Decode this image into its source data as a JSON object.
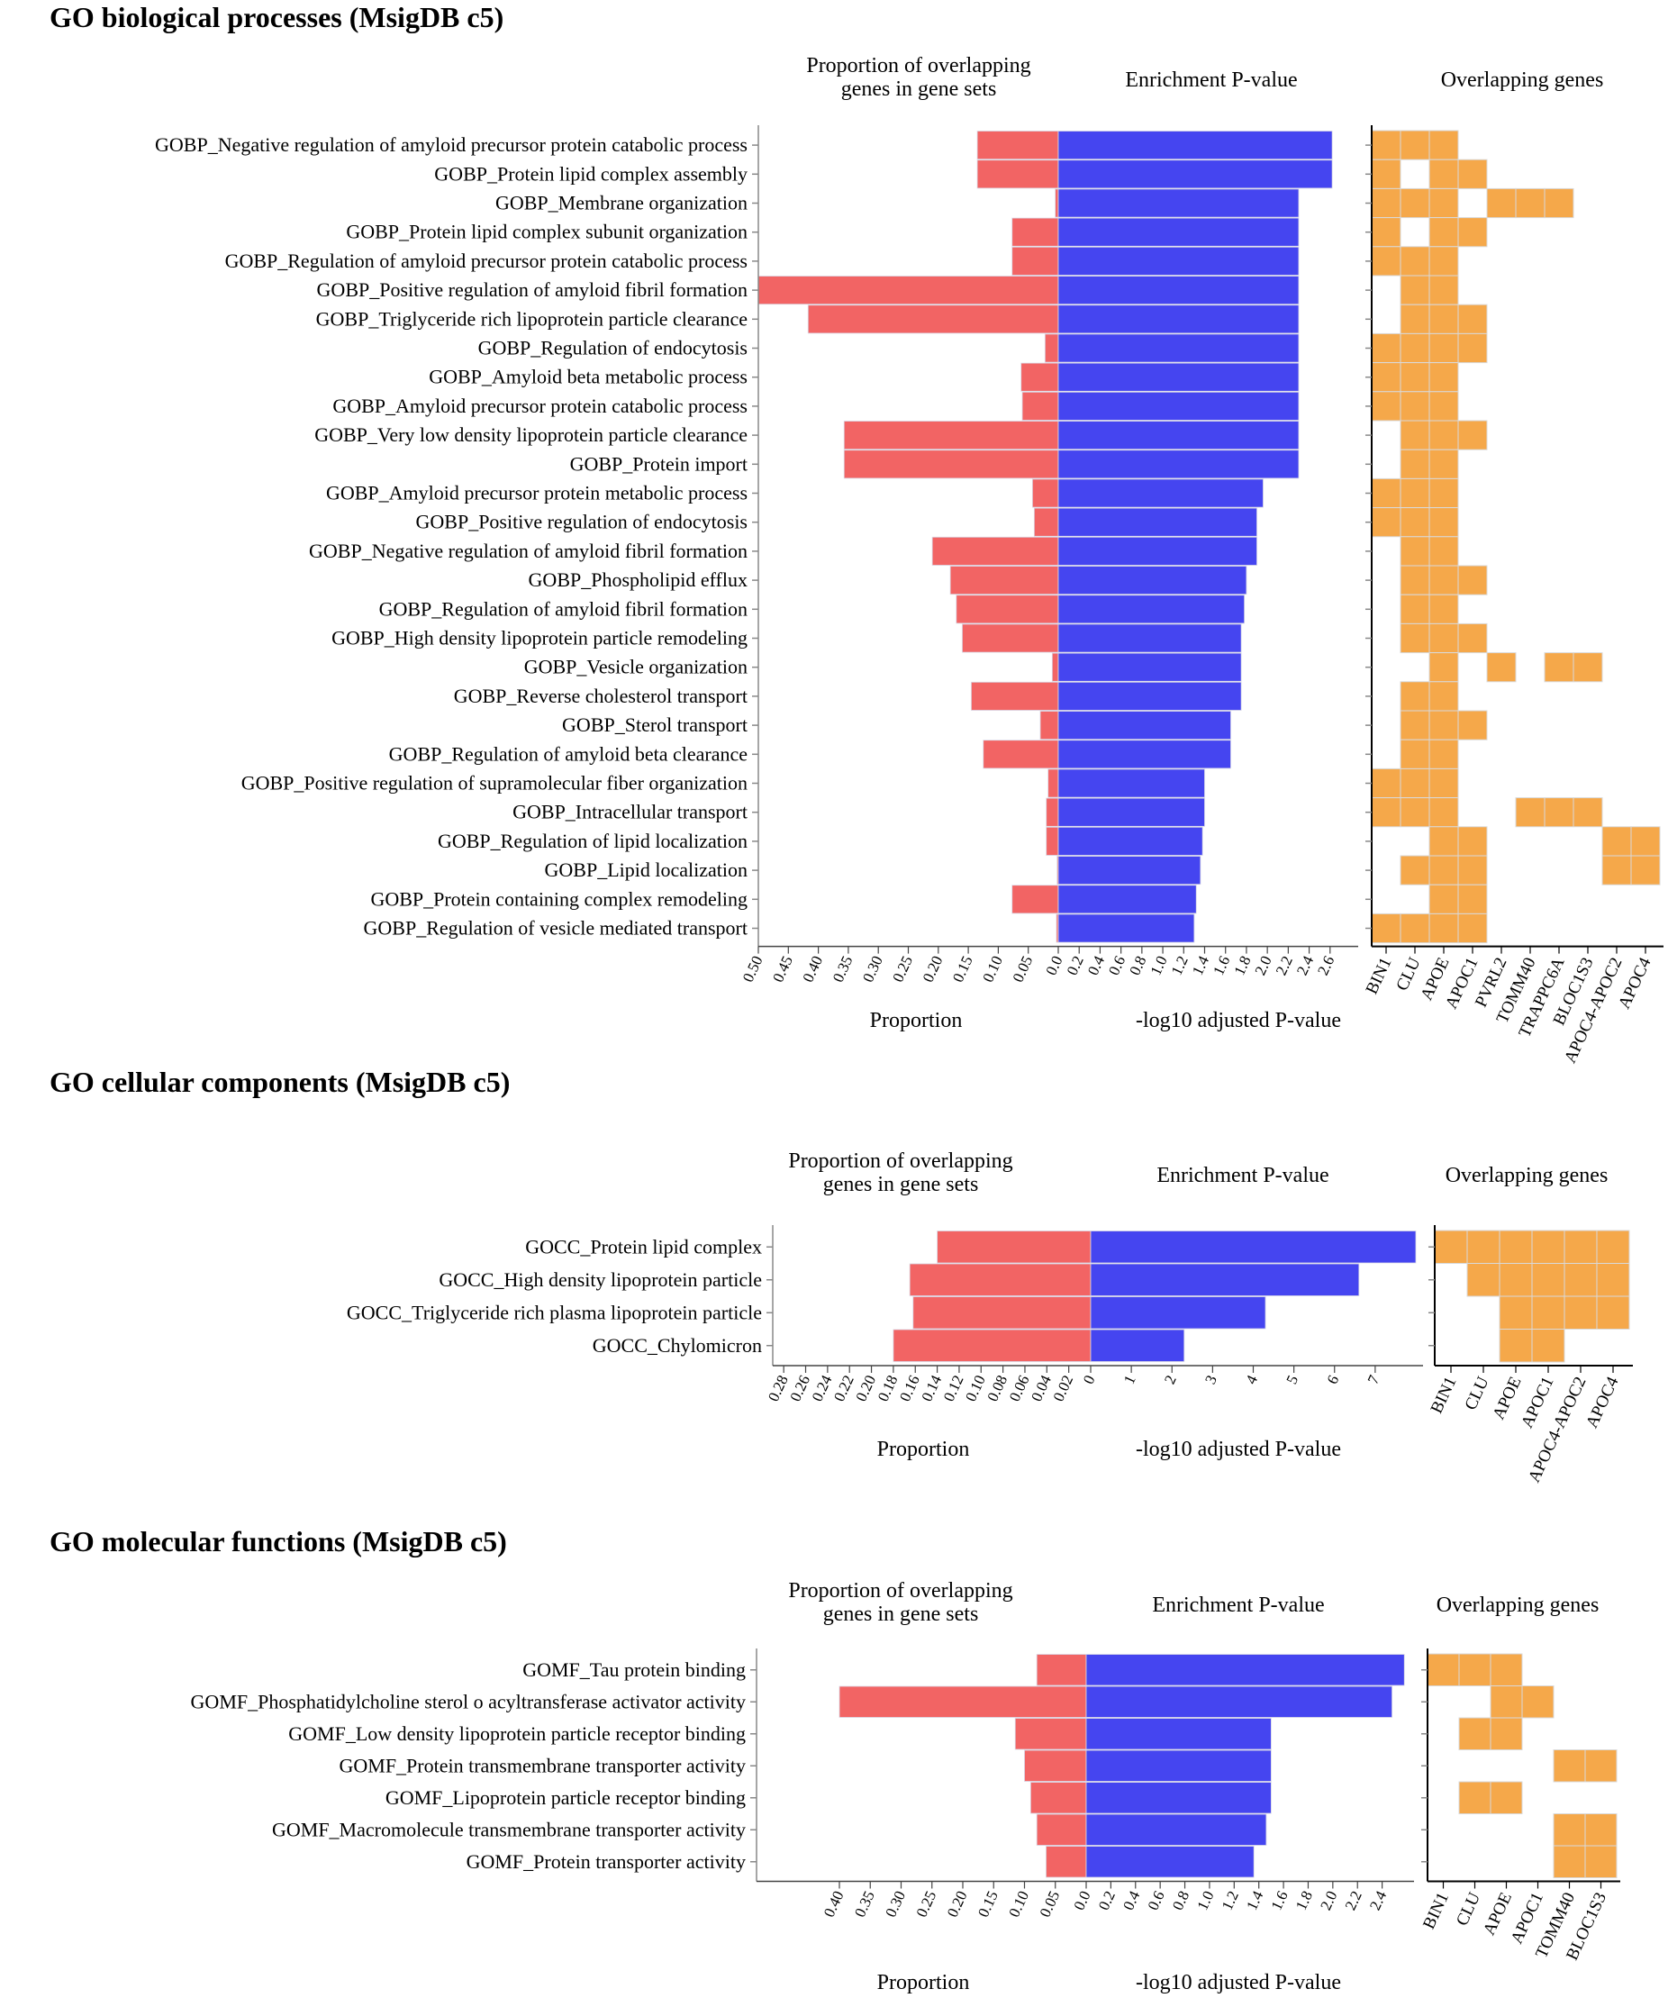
{
  "colors": {
    "proportion": "#f26464",
    "pvalue": "#4545f0",
    "gene": "#f5a84a"
  },
  "panels": [
    {
      "title": "GO biological processes (MsigDB c5)",
      "header_proportion": [
        "Proportion of overlapping",
        "genes in gene sets"
      ],
      "header_pvalue": "Enrichment P-value",
      "header_genes": "Overlapping genes",
      "xlabel_proportion": "Proportion",
      "xlabel_pvalue": "-log10 adjusted P-value",
      "proportion_ticks": [
        "0.50",
        "0.45",
        "0.40",
        "0.35",
        "0.30",
        "0.25",
        "0.20",
        "0.15",
        "0.10",
        "0.05",
        "0.0"
      ],
      "pvalue_ticks": [
        "0.2",
        "0.4",
        "0.6",
        "0.8",
        "1.0",
        "1.2",
        "1.4",
        "1.6",
        "1.8",
        "2.0",
        "2.2",
        "2.4",
        "2.6"
      ],
      "genes": [
        "BIN1",
        "CLU",
        "APOE",
        "APOC1",
        "PVRL2",
        "TOMM40",
        "TRAPPC6A",
        "BLOC1S3",
        "APOC4-APOC2",
        "APOC4"
      ]
    },
    {
      "title": "GO cellular components (MsigDB c5)",
      "header_proportion": [
        "Proportion of overlapping",
        "genes in gene sets"
      ],
      "header_pvalue": "Enrichment P-value",
      "header_genes": "Overlapping genes",
      "xlabel_proportion": "Proportion",
      "xlabel_pvalue": "-log10 adjusted P-value",
      "proportion_ticks": [
        "0.28",
        "0.26",
        "0.24",
        "0.22",
        "0.20",
        "0.18",
        "0.16",
        "0.14",
        "0.12",
        "0.10",
        "0.08",
        "0.06",
        "0.04",
        "0.02",
        "0"
      ],
      "pvalue_ticks": [
        "1",
        "2",
        "3",
        "4",
        "5",
        "6",
        "7"
      ],
      "genes": [
        "BIN1",
        "CLU",
        "APOE",
        "APOC1",
        "APOC4-APOC2",
        "APOC4"
      ]
    },
    {
      "title": "GO molecular functions (MsigDB c5)",
      "header_proportion": [
        "Proportion of overlapping",
        "genes in gene sets"
      ],
      "header_pvalue": "Enrichment P-value",
      "header_genes": "Overlapping genes",
      "xlabel_proportion": "Proportion",
      "xlabel_pvalue": "-log10 adjusted P-value",
      "proportion_ticks": [
        "0.40",
        "0.35",
        "0.30",
        "0.25",
        "0.20",
        "0.15",
        "0.10",
        "0.05",
        "0.0"
      ],
      "pvalue_ticks": [
        "0.2",
        "0.4",
        "0.6",
        "0.8",
        "1.0",
        "1.2",
        "1.4",
        "1.6",
        "1.8",
        "2.0",
        "2.2",
        "2.4"
      ],
      "genes": [
        "BIN1",
        "CLU",
        "APOE",
        "APOC1",
        "TOMM40",
        "BLOC1S3"
      ]
    }
  ],
  "chart_data": [
    {
      "type": "bar",
      "title": "GO biological processes (MsigDB c5)",
      "prop_max": 0.5,
      "p_max": 2.8,
      "categories": [
        "GOBP_Negative regulation of amyloid precursor protein catabolic process",
        "GOBP_Protein lipid complex assembly",
        "GOBP_Membrane organization",
        "GOBP_Protein lipid complex subunit organization",
        "GOBP_Regulation of amyloid precursor protein catabolic process",
        "GOBP_Positive regulation of amyloid fibril formation",
        "GOBP_Triglyceride rich lipoprotein particle clearance",
        "GOBP_Regulation of endocytosis",
        "GOBP_Amyloid beta metabolic process",
        "GOBP_Amyloid precursor protein catabolic process",
        "GOBP_Very low density lipoprotein particle clearance",
        "GOBP_Protein import",
        "GOBP_Amyloid precursor protein metabolic process",
        "GOBP_Positive regulation of endocytosis",
        "GOBP_Negative regulation of amyloid fibril formation",
        "GOBP_Phospholipid efflux",
        "GOBP_Regulation of amyloid fibril formation",
        "GOBP_High density lipoprotein particle remodeling",
        "GOBP_Vesicle organization",
        "GOBP_Reverse cholesterol transport",
        "GOBP_Sterol transport",
        "GOBP_Regulation of amyloid beta clearance",
        "GOBP_Positive regulation of supramolecular fiber organization",
        "GOBP_Intracellular transport",
        "GOBP_Regulation of lipid localization",
        "GOBP_Lipid localization",
        "GOBP_Protein containing complex remodeling",
        "GOBP_Regulation of vesicle mediated transport"
      ],
      "series": [
        {
          "name": "Proportion",
          "values": [
            0.135,
            0.135,
            0.005,
            0.077,
            0.077,
            0.5,
            0.417,
            0.022,
            0.062,
            0.06,
            0.357,
            0.357,
            0.043,
            0.04,
            0.21,
            0.18,
            0.17,
            0.16,
            0.01,
            0.145,
            0.03,
            0.125,
            0.017,
            0.02,
            0.02,
            0.002,
            0.077,
            0.003
          ]
        },
        {
          "name": "-log10 adjusted P-value",
          "values": [
            2.62,
            2.62,
            2.3,
            2.3,
            2.3,
            2.3,
            2.3,
            2.3,
            2.3,
            2.3,
            2.3,
            2.3,
            1.96,
            1.9,
            1.9,
            1.8,
            1.78,
            1.75,
            1.75,
            1.75,
            1.65,
            1.65,
            1.4,
            1.4,
            1.38,
            1.36,
            1.32,
            1.3
          ]
        }
      ],
      "overlapping_genes": [
        [
          1,
          1,
          1,
          0,
          0,
          0,
          0,
          0,
          0,
          0
        ],
        [
          1,
          0,
          1,
          1,
          0,
          0,
          0,
          0,
          0,
          0
        ],
        [
          1,
          1,
          1,
          0,
          1,
          1,
          1,
          0,
          0,
          0
        ],
        [
          1,
          0,
          1,
          1,
          0,
          0,
          0,
          0,
          0,
          0
        ],
        [
          1,
          1,
          1,
          0,
          0,
          0,
          0,
          0,
          0,
          0
        ],
        [
          0,
          1,
          1,
          0,
          0,
          0,
          0,
          0,
          0,
          0
        ],
        [
          0,
          1,
          1,
          1,
          0,
          0,
          0,
          0,
          0,
          0
        ],
        [
          1,
          1,
          1,
          1,
          0,
          0,
          0,
          0,
          0,
          0
        ],
        [
          1,
          1,
          1,
          0,
          0,
          0,
          0,
          0,
          0,
          0
        ],
        [
          1,
          1,
          1,
          0,
          0,
          0,
          0,
          0,
          0,
          0
        ],
        [
          0,
          1,
          1,
          1,
          0,
          0,
          0,
          0,
          0,
          0
        ],
        [
          0,
          1,
          1,
          0,
          0,
          0,
          0,
          0,
          0,
          0
        ],
        [
          1,
          1,
          1,
          0,
          0,
          0,
          0,
          0,
          0,
          0
        ],
        [
          1,
          1,
          1,
          0,
          0,
          0,
          0,
          0,
          0,
          0
        ],
        [
          0,
          1,
          1,
          0,
          0,
          0,
          0,
          0,
          0,
          0
        ],
        [
          0,
          1,
          1,
          1,
          0,
          0,
          0,
          0,
          0,
          0
        ],
        [
          0,
          1,
          1,
          0,
          0,
          0,
          0,
          0,
          0,
          0
        ],
        [
          0,
          1,
          1,
          1,
          0,
          0,
          0,
          0,
          0,
          0
        ],
        [
          0,
          0,
          1,
          0,
          1,
          0,
          1,
          1,
          0,
          0
        ],
        [
          0,
          1,
          1,
          0,
          0,
          0,
          0,
          0,
          0,
          0
        ],
        [
          0,
          1,
          1,
          1,
          0,
          0,
          0,
          0,
          0,
          0
        ],
        [
          0,
          1,
          1,
          0,
          0,
          0,
          0,
          0,
          0,
          0
        ],
        [
          1,
          1,
          1,
          0,
          0,
          0,
          0,
          0,
          0,
          0
        ],
        [
          1,
          1,
          1,
          0,
          0,
          1,
          1,
          1,
          0,
          0
        ],
        [
          0,
          0,
          1,
          1,
          0,
          0,
          0,
          0,
          1,
          1
        ],
        [
          0,
          1,
          1,
          1,
          0,
          0,
          0,
          0,
          1,
          1
        ],
        [
          0,
          0,
          1,
          1,
          0,
          0,
          0,
          0,
          0,
          0
        ],
        [
          1,
          1,
          1,
          1,
          0,
          0,
          0,
          0,
          0,
          0
        ]
      ]
    },
    {
      "type": "bar",
      "title": "GO cellular components (MsigDB c5)",
      "prop_max": 0.29,
      "p_max": 8,
      "categories": [
        "GOCC_Protein lipid complex",
        "GOCC_High density lipoprotein particle",
        "GOCC_Triglyceride rich plasma lipoprotein particle",
        "GOCC_Chylomicron"
      ],
      "series": [
        {
          "name": "Proportion",
          "values": [
            0.14,
            0.165,
            0.162,
            0.18
          ]
        },
        {
          "name": "-log10 adjusted P-value",
          "values": [
            8.0,
            6.6,
            4.3,
            2.3
          ]
        }
      ],
      "overlapping_genes": [
        [
          1,
          1,
          1,
          1,
          1,
          1
        ],
        [
          0,
          1,
          1,
          1,
          1,
          1
        ],
        [
          0,
          0,
          1,
          1,
          1,
          1
        ],
        [
          0,
          0,
          1,
          1,
          0,
          0
        ]
      ]
    },
    {
      "type": "bar",
      "title": "GO molecular functions (MsigDB c5)",
      "prop_max": 0.4,
      "p_max": 2.6,
      "categories": [
        "GOMF_Tau protein binding",
        "GOMF_Phosphatidylcholine sterol o acyltransferase activator activity",
        "GOMF_Low density lipoprotein particle receptor binding",
        "GOMF_Protein transmembrane transporter activity",
        "GOMF_Lipoprotein particle receptor binding",
        "GOMF_Macromolecule transmembrane transporter activity",
        "GOMF_Protein transporter activity"
      ],
      "series": [
        {
          "name": "Proportion",
          "values": [
            0.08,
            0.4,
            0.115,
            0.1,
            0.09,
            0.08,
            0.065
          ]
        },
        {
          "name": "-log10 adjusted P-value",
          "values": [
            2.58,
            2.48,
            1.5,
            1.5,
            1.5,
            1.46,
            1.36
          ]
        }
      ],
      "overlapping_genes": [
        [
          1,
          1,
          1,
          0,
          0,
          0
        ],
        [
          0,
          0,
          1,
          1,
          0,
          0
        ],
        [
          0,
          1,
          1,
          0,
          0,
          0
        ],
        [
          0,
          0,
          0,
          0,
          1,
          1
        ],
        [
          0,
          1,
          1,
          0,
          0,
          0
        ],
        [
          0,
          0,
          0,
          0,
          1,
          1
        ],
        [
          0,
          0,
          0,
          0,
          1,
          1
        ]
      ]
    }
  ]
}
